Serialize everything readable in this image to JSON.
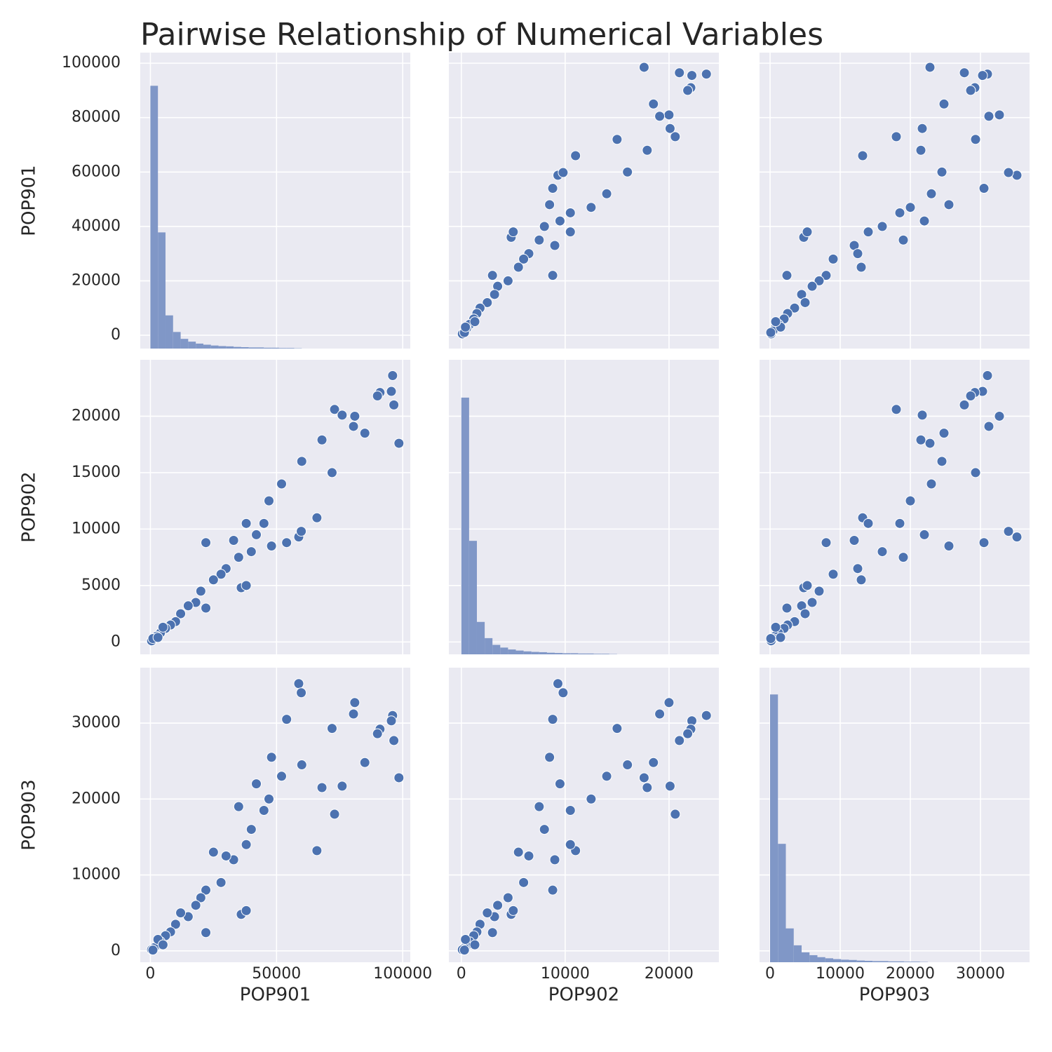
{
  "title": "Pairwise Relationship of Numerical Variables",
  "chart_data": [
    {
      "type": "histogram",
      "color": "#8097c7",
      "ylabel": "POP901",
      "ylim": [
        -4900,
        103900
      ],
      "yticks": [
        0,
        20000,
        40000,
        60000,
        80000,
        100000
      ],
      "y2lim": [
        0,
        1070
      ],
      "bins": [
        0,
        3000,
        6000,
        9000,
        12000,
        15000,
        18000,
        21000,
        24000,
        27000,
        30000,
        33000,
        36000,
        39000,
        42000,
        45000,
        48000,
        51000,
        54000,
        57000,
        60000
      ],
      "values": [
        950,
        420,
        120,
        60,
        35,
        25,
        18,
        14,
        11,
        9,
        8,
        6,
        5,
        4,
        4,
        3,
        3,
        2,
        2,
        1
      ]
    },
    {
      "type": "scatter",
      "color": "#4c72b0",
      "x": [
        17600,
        23600,
        22200,
        21000,
        22100,
        21800,
        20000,
        19100,
        18500,
        20600,
        20100,
        15000,
        17900,
        11000,
        16000,
        9300,
        9800,
        8800,
        8500,
        14000,
        12500,
        10500,
        9500,
        8000,
        10500,
        4800,
        5000,
        7500,
        9000,
        6500,
        6000,
        5500,
        8800,
        3000,
        4500,
        3500,
        3200,
        2500,
        1800,
        1500,
        1200,
        800,
        500,
        300,
        100,
        300,
        400,
        1300
      ],
      "values": [
        98500,
        96000,
        95500,
        96500,
        91000,
        90000,
        81000,
        80500,
        85000,
        73000,
        76000,
        72000,
        68000,
        66000,
        60000,
        58800,
        59800,
        54000,
        48000,
        52000,
        47000,
        45000,
        42000,
        40000,
        38000,
        36000,
        38000,
        35000,
        33000,
        30000,
        28000,
        25000,
        22000,
        22000,
        20000,
        18000,
        15000,
        12000,
        10000,
        8000,
        6000,
        4000,
        2500,
        1500,
        500,
        1000,
        3000,
        5000
      ]
    },
    {
      "type": "scatter",
      "color": "#4c72b0",
      "x": [
        22800,
        31000,
        30300,
        27700,
        29200,
        28600,
        32700,
        31200,
        24800,
        18000,
        21700,
        29300,
        21500,
        13200,
        24500,
        35200,
        34000,
        30500,
        25500,
        23000,
        20000,
        18500,
        22000,
        16000,
        14000,
        4800,
        5300,
        19000,
        12000,
        12500,
        9000,
        13000,
        8000,
        2400,
        7000,
        6000,
        4500,
        5000,
        3500,
        2500,
        2000,
        1200,
        700,
        400,
        150,
        100,
        1500,
        800
      ],
      "values": [
        98500,
        96000,
        95500,
        96500,
        91000,
        90000,
        81000,
        80500,
        85000,
        73000,
        76000,
        72000,
        68000,
        66000,
        60000,
        58800,
        59800,
        54000,
        48000,
        52000,
        47000,
        45000,
        42000,
        40000,
        38000,
        36000,
        38000,
        35000,
        33000,
        30000,
        28000,
        25000,
        22000,
        22000,
        20000,
        18000,
        15000,
        12000,
        10000,
        8000,
        6000,
        4000,
        2500,
        1500,
        500,
        1000,
        3000,
        5000
      ]
    },
    {
      "type": "scatter",
      "color": "#4c72b0",
      "ylabel": "POP902",
      "ylim": [
        -1100,
        25000
      ],
      "yticks": [
        0,
        5000,
        10000,
        15000,
        20000
      ],
      "x": [
        98500,
        96000,
        95500,
        96500,
        91000,
        90000,
        81000,
        80500,
        85000,
        73000,
        76000,
        72000,
        68000,
        66000,
        60000,
        58800,
        59800,
        54000,
        48000,
        52000,
        47000,
        45000,
        42000,
        40000,
        38000,
        36000,
        38000,
        35000,
        33000,
        30000,
        28000,
        25000,
        22000,
        22000,
        20000,
        18000,
        15000,
        12000,
        10000,
        8000,
        6000,
        4000,
        2500,
        1500,
        500,
        1000,
        3000,
        5000
      ],
      "values": [
        17600,
        23600,
        22200,
        21000,
        22100,
        21800,
        20000,
        19100,
        18500,
        20600,
        20100,
        15000,
        17900,
        11000,
        16000,
        9300,
        9800,
        8800,
        8500,
        14000,
        12500,
        10500,
        9500,
        8000,
        10500,
        4800,
        5000,
        7500,
        9000,
        6500,
        6000,
        5500,
        8800,
        3000,
        4500,
        3500,
        3200,
        2500,
        1800,
        1500,
        1200,
        800,
        500,
        300,
        100,
        300,
        400,
        1300
      ]
    },
    {
      "type": "histogram",
      "color": "#8097c7",
      "y2lim": [
        0,
        1090
      ],
      "bins": [
        0,
        750,
        1500,
        2250,
        3000,
        3750,
        4500,
        5250,
        6000,
        6750,
        7500,
        8250,
        9000,
        9750,
        10500,
        11250,
        12000,
        12750,
        13500,
        14250,
        15000
      ],
      "values": [
        950,
        420,
        120,
        60,
        35,
        25,
        18,
        14,
        11,
        9,
        8,
        6,
        5,
        4,
        4,
        3,
        3,
        2,
        2,
        1
      ]
    },
    {
      "type": "scatter",
      "color": "#4c72b0",
      "x": [
        22800,
        31000,
        30300,
        27700,
        29200,
        28600,
        32700,
        31200,
        24800,
        18000,
        21700,
        29300,
        21500,
        13200,
        24500,
        35200,
        34000,
        30500,
        25500,
        23000,
        20000,
        18500,
        22000,
        16000,
        14000,
        4800,
        5300,
        19000,
        12000,
        12500,
        9000,
        13000,
        8000,
        2400,
        7000,
        6000,
        4500,
        5000,
        3500,
        2500,
        2000,
        1200,
        700,
        400,
        150,
        100,
        1500,
        800
      ],
      "values": [
        17600,
        23600,
        22200,
        21000,
        22100,
        21800,
        20000,
        19100,
        18500,
        20600,
        20100,
        15000,
        17900,
        11000,
        16000,
        9300,
        9800,
        8800,
        8500,
        14000,
        12500,
        10500,
        9500,
        8000,
        10500,
        4800,
        5000,
        7500,
        9000,
        6500,
        6000,
        5500,
        8800,
        3000,
        4500,
        3500,
        3200,
        2500,
        1800,
        1500,
        1200,
        800,
        500,
        300,
        100,
        300,
        400,
        1300
      ]
    },
    {
      "type": "scatter",
      "color": "#4c72b0",
      "ylabel": "POP903",
      "xlabel": "POP901",
      "xlim": [
        -4000,
        103000
      ],
      "xticks": [
        0,
        50000,
        100000
      ],
      "ylim": [
        -1500,
        37300
      ],
      "yticks": [
        0,
        10000,
        20000,
        30000
      ],
      "x": [
        98500,
        96000,
        95500,
        96500,
        91000,
        90000,
        81000,
        80500,
        85000,
        73000,
        76000,
        72000,
        68000,
        66000,
        60000,
        58800,
        59800,
        54000,
        48000,
        52000,
        47000,
        45000,
        42000,
        40000,
        38000,
        36000,
        38000,
        35000,
        33000,
        30000,
        28000,
        25000,
        22000,
        22000,
        20000,
        18000,
        15000,
        12000,
        10000,
        8000,
        6000,
        4000,
        2500,
        1500,
        500,
        1000,
        3000,
        5000
      ],
      "values": [
        22800,
        31000,
        30300,
        27700,
        29200,
        28600,
        32700,
        31200,
        24800,
        18000,
        21700,
        29300,
        21500,
        13200,
        24500,
        35200,
        34000,
        30500,
        25500,
        23000,
        20000,
        18500,
        22000,
        16000,
        14000,
        4800,
        5300,
        19000,
        12000,
        12500,
        9000,
        13000,
        8000,
        2400,
        7000,
        6000,
        4500,
        5000,
        3500,
        2500,
        2000,
        1200,
        700,
        400,
        150,
        100,
        1500,
        800
      ]
    },
    {
      "type": "scatter",
      "color": "#4c72b0",
      "xlabel": "POP902",
      "xlim": [
        -1200,
        24800
      ],
      "xticks": [
        0,
        10000,
        20000
      ],
      "x": [
        17600,
        23600,
        22200,
        21000,
        22100,
        21800,
        20000,
        19100,
        18500,
        20600,
        20100,
        15000,
        17900,
        11000,
        16000,
        9300,
        9800,
        8800,
        8500,
        14000,
        12500,
        10500,
        9500,
        8000,
        10500,
        4800,
        5000,
        7500,
        9000,
        6500,
        6000,
        5500,
        8800,
        3000,
        4500,
        3500,
        3200,
        2500,
        1800,
        1500,
        1200,
        800,
        500,
        300,
        100,
        300,
        400,
        1300
      ],
      "values": [
        22800,
        31000,
        30300,
        27700,
        29200,
        28600,
        32700,
        31200,
        24800,
        18000,
        21700,
        29300,
        21500,
        13200,
        24500,
        35200,
        34000,
        30500,
        25500,
        23000,
        20000,
        18500,
        22000,
        16000,
        14000,
        4800,
        5300,
        19000,
        12000,
        12500,
        9000,
        13000,
        8000,
        2400,
        7000,
        6000,
        4500,
        5000,
        3500,
        2500,
        2000,
        1200,
        700,
        400,
        150,
        100,
        1500,
        800
      ]
    },
    {
      "type": "histogram",
      "color": "#8097c7",
      "xlabel": "POP903",
      "xlim": [
        -1500,
        37000
      ],
      "xticks": [
        0,
        10000,
        20000,
        30000
      ],
      "y2lim": [
        0,
        1045
      ],
      "bins": [
        0,
        1125,
        2250,
        3375,
        4500,
        5625,
        6750,
        7875,
        9000,
        10125,
        11250,
        12375,
        13500,
        14625,
        15750,
        16875,
        18000,
        19125,
        20250,
        21375,
        22500
      ],
      "values": [
        950,
        420,
        120,
        60,
        35,
        25,
        18,
        14,
        11,
        9,
        8,
        6,
        5,
        4,
        4,
        3,
        3,
        2,
        2,
        1
      ]
    }
  ]
}
